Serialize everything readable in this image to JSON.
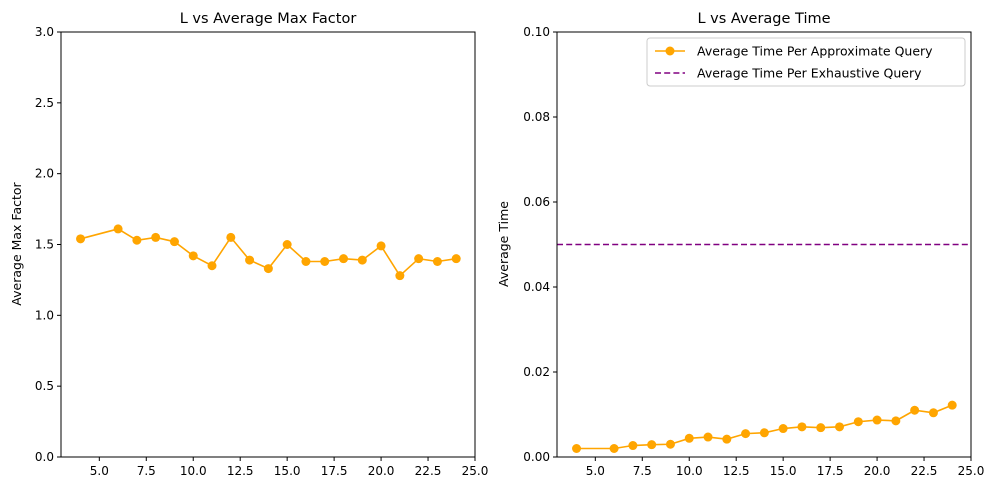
{
  "chart_data": [
    {
      "type": "line",
      "title": "L vs Average Max Factor",
      "xlabel": "",
      "ylabel": "Average Max Factor",
      "xlim": [
        2.96,
        25.0
      ],
      "ylim": [
        0.0,
        3.0
      ],
      "xticks": [
        5.0,
        7.5,
        10.0,
        12.5,
        15.0,
        17.5,
        20.0,
        22.5,
        25.0
      ],
      "xtick_labels": [
        "5.0",
        "7.5",
        "10.0",
        "12.5",
        "15.0",
        "17.5",
        "20.0",
        "22.5",
        "25.0"
      ],
      "yticks": [
        0.0,
        0.5,
        1.0,
        1.5,
        2.0,
        2.5,
        3.0
      ],
      "ytick_labels": [
        "0.0",
        "0.5",
        "1.0",
        "1.5",
        "2.0",
        "2.5",
        "3.0"
      ],
      "grid": false,
      "series": [
        {
          "color": "#FFA500",
          "marker": "circle",
          "x": [
            4,
            6,
            7,
            8,
            9,
            10,
            11,
            12,
            13,
            14,
            15,
            16,
            17,
            18,
            19,
            20,
            21,
            22,
            23,
            24
          ],
          "values": [
            1.54,
            1.61,
            1.53,
            1.55,
            1.52,
            1.42,
            1.35,
            1.55,
            1.39,
            1.33,
            1.5,
            1.38,
            1.38,
            1.4,
            1.39,
            1.49,
            1.28,
            1.4,
            1.38,
            1.4
          ]
        }
      ]
    },
    {
      "type": "line",
      "title": "L vs Average Time",
      "xlabel": "",
      "ylabel": "Average Time",
      "xlim": [
        2.96,
        25.0
      ],
      "ylim": [
        0.0,
        0.1
      ],
      "xticks": [
        5.0,
        7.5,
        10.0,
        12.5,
        15.0,
        17.5,
        20.0,
        22.5,
        25.0
      ],
      "xtick_labels": [
        "5.0",
        "7.5",
        "10.0",
        "12.5",
        "15.0",
        "17.5",
        "20.0",
        "22.5",
        "25.0"
      ],
      "yticks": [
        0.0,
        0.02,
        0.04,
        0.06,
        0.08,
        0.1
      ],
      "ytick_labels": [
        "0.00",
        "0.02",
        "0.04",
        "0.06",
        "0.08",
        "0.10"
      ],
      "grid": false,
      "legend_position": "top-right",
      "series": [
        {
          "name": "Average Time Per Approximate Query",
          "color": "#FFA500",
          "marker": "circle",
          "x": [
            4,
            6,
            7,
            8,
            9,
            10,
            11,
            12,
            13,
            14,
            15,
            16,
            17,
            18,
            19,
            20,
            21,
            22,
            23,
            24
          ],
          "values": [
            0.002,
            0.002,
            0.0027,
            0.0029,
            0.003,
            0.0044,
            0.0047,
            0.0042,
            0.0055,
            0.0057,
            0.0067,
            0.0071,
            0.0069,
            0.0071,
            0.0083,
            0.0087,
            0.0085,
            0.011,
            0.0104,
            0.0122
          ]
        },
        {
          "name": "Average Time Per Exhaustive Query",
          "color": "#800080",
          "style": "dashed",
          "type": "hline",
          "y": 0.05
        }
      ]
    }
  ]
}
